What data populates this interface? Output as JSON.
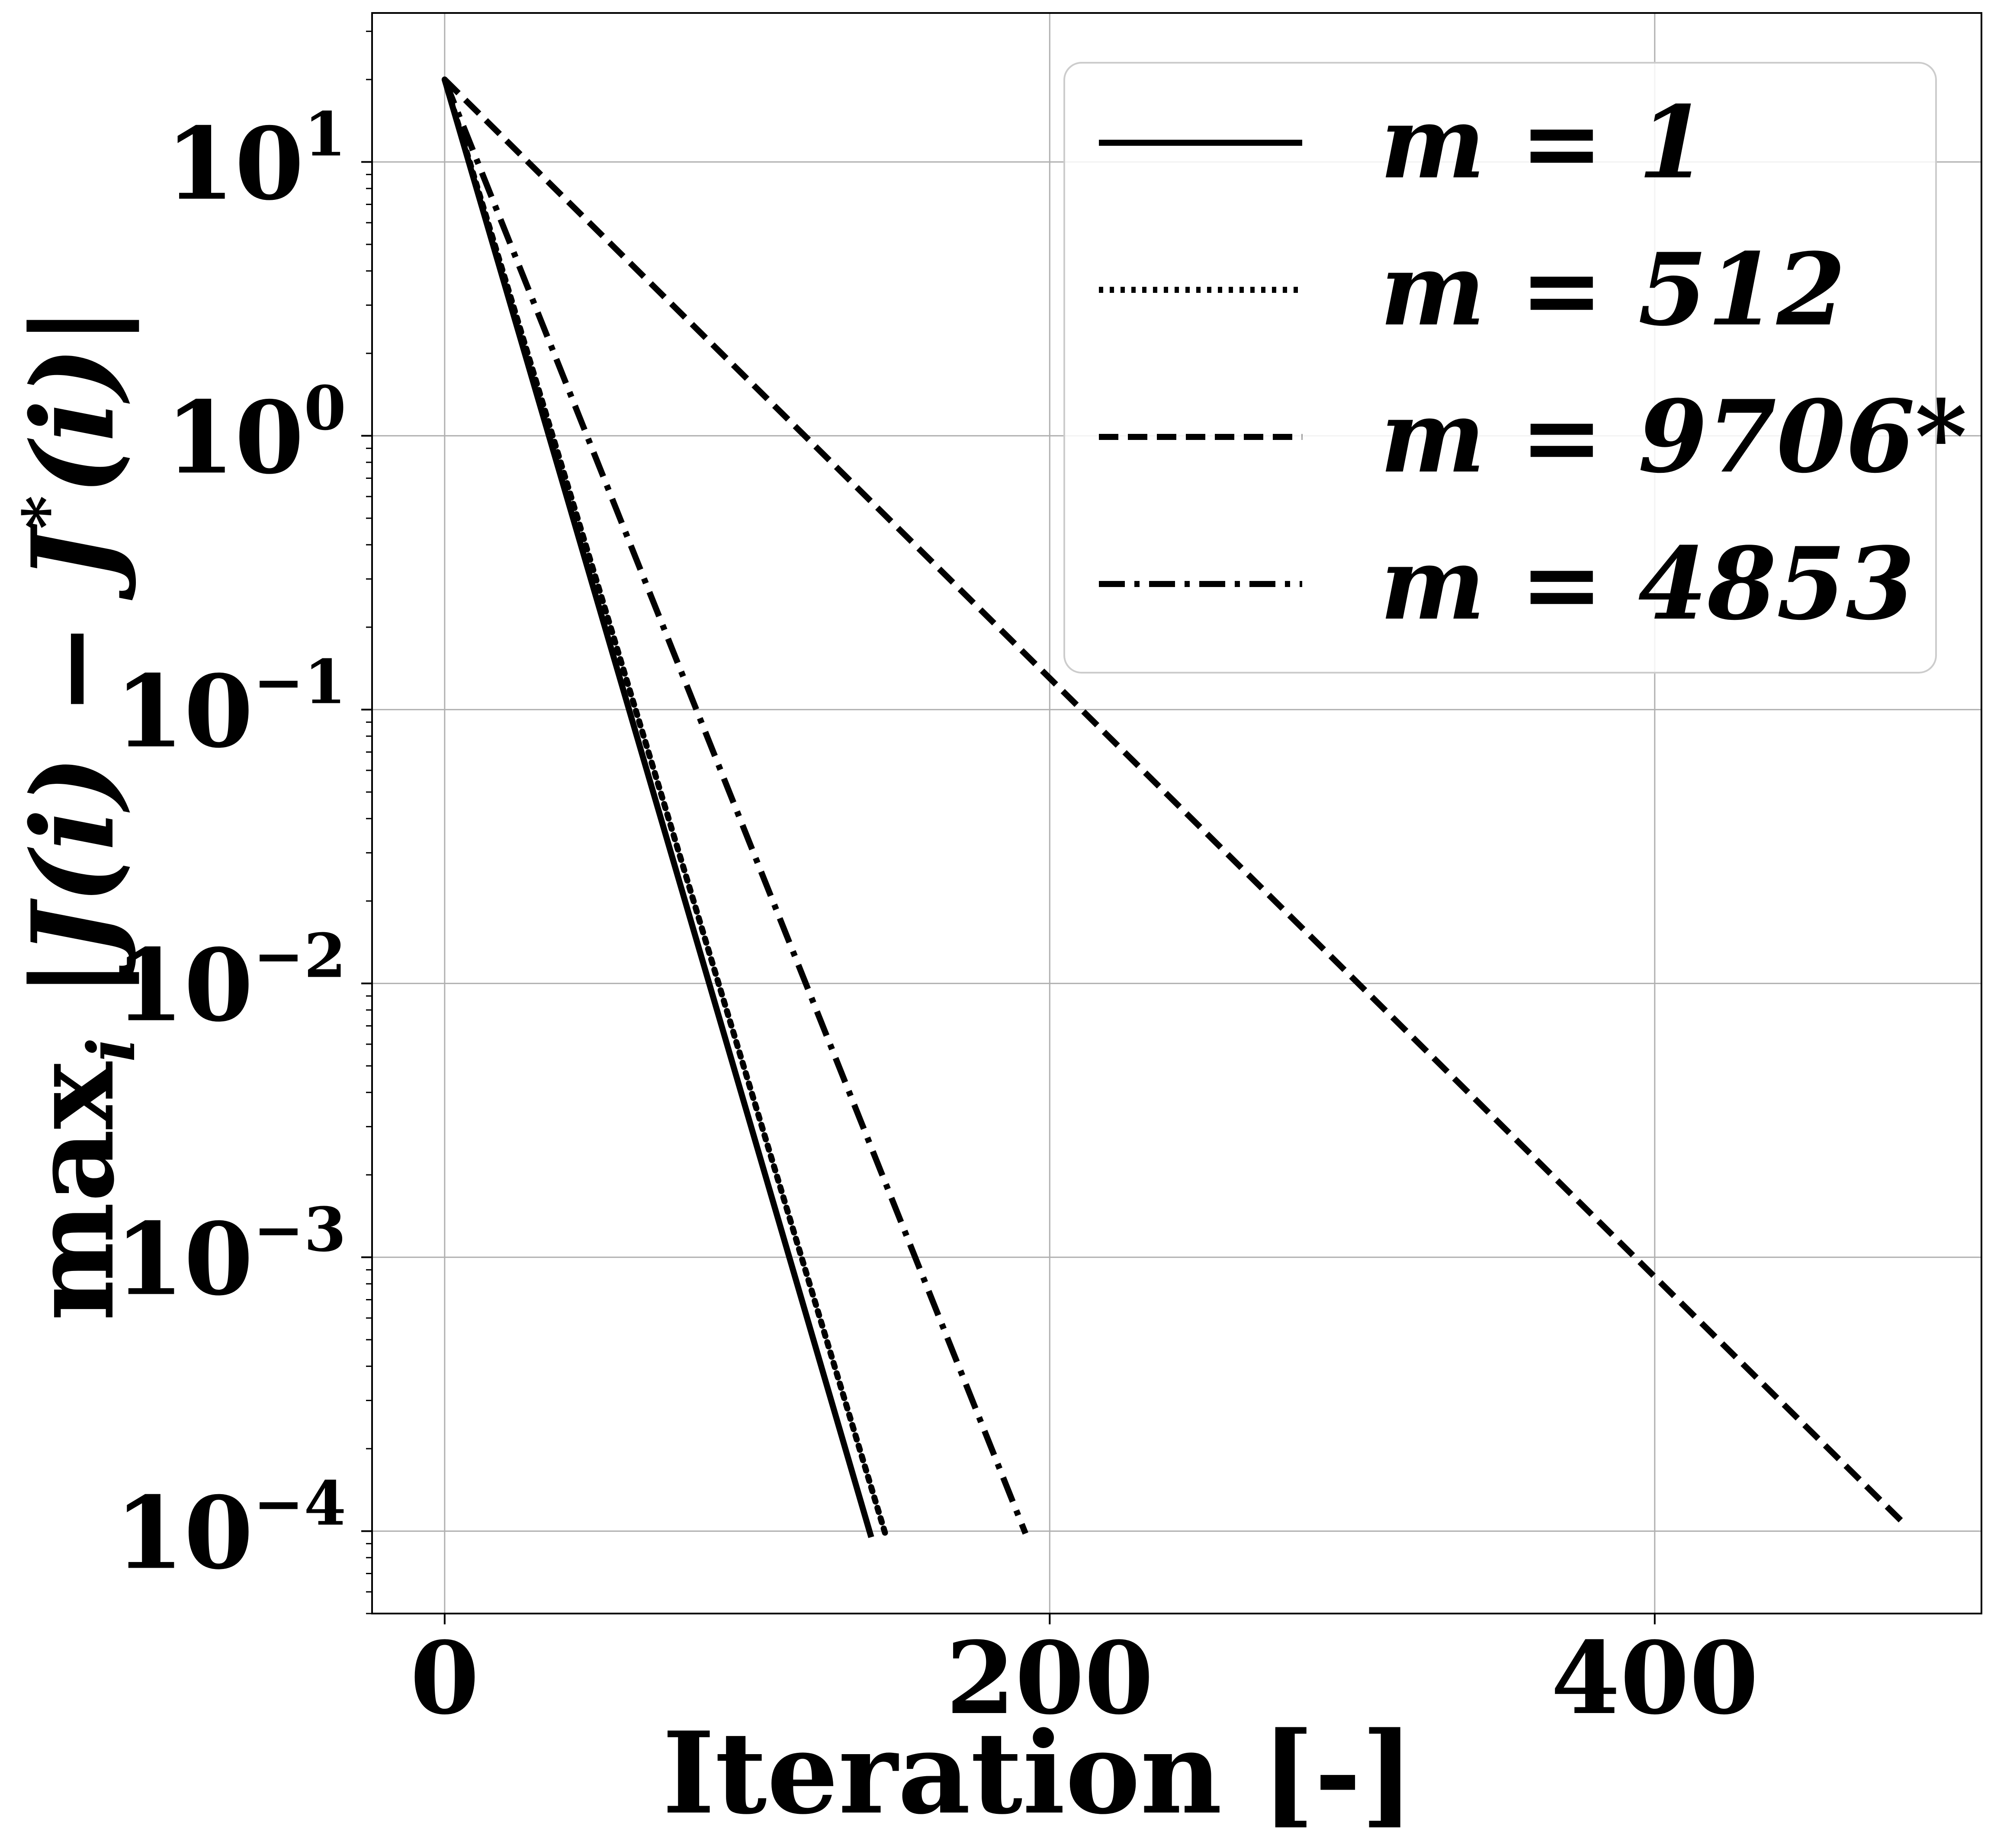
{
  "chart_data": {
    "type": "line",
    "xlabel": "Iteration [-]",
    "ylabel": "max_i |J(i) − J*(i)|",
    "yscale": "log",
    "xlim": [
      -24,
      508
    ],
    "ylim": [
      5e-05,
      35
    ],
    "x_ticks": [
      0,
      200,
      400
    ],
    "y_ticks": [
      10,
      1,
      0.1,
      0.01,
      0.001,
      0.0001
    ],
    "y_tick_labels": [
      {
        "base": "10",
        "exp": "1"
      },
      {
        "base": "10",
        "exp": "0"
      },
      {
        "base": "10",
        "exp": "−1"
      },
      {
        "base": "10",
        "exp": "−2"
      },
      {
        "base": "10",
        "exp": "−3"
      },
      {
        "base": "10",
        "exp": "−4"
      }
    ],
    "grid": true,
    "legend_position": "top-right",
    "series": [
      {
        "name": "m = 1",
        "style": "solid",
        "points": [
          [
            0,
            20
          ],
          [
            141,
            9.5e-05
          ]
        ]
      },
      {
        "name": "m = 512",
        "style": "dotted",
        "points": [
          [
            0,
            20
          ],
          [
            146,
            9.5e-05
          ]
        ]
      },
      {
        "name": "m = 9706*",
        "style": "dashed",
        "points": [
          [
            0,
            20
          ],
          [
            483,
            0.000105
          ]
        ]
      },
      {
        "name": "m = 4853",
        "style": "dashdot",
        "points": [
          [
            0,
            20
          ],
          [
            192,
            9.8e-05
          ]
        ]
      }
    ]
  }
}
